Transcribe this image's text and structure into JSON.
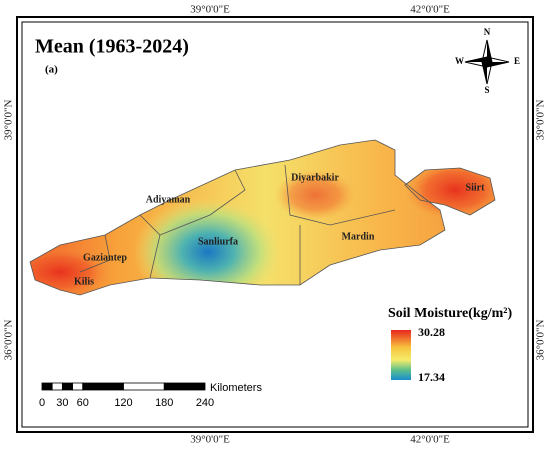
{
  "header": {
    "title": "Mean (1963-2024)",
    "subtitle": "(a)"
  },
  "coordinates": {
    "top": [
      "39°0'0\"E",
      "42°0'0\"E"
    ],
    "bottom": [
      "39°0'0\"E",
      "42°0'0\"E"
    ],
    "left": [
      "39°0'0\"N",
      "36°0'0\"N"
    ],
    "right": [
      "39°0'0\"N",
      "36°0'0\"N"
    ]
  },
  "places": [
    "Diyarbakir",
    "Siirt",
    "Adiyaman",
    "Sanliurfa",
    "Mardin",
    "Gaziantep",
    "Kilis"
  ],
  "compass": [
    "N",
    "S",
    "E",
    "W"
  ],
  "legend": {
    "title": "Soil Moisture(kg/m²)",
    "max": 30.28,
    "min": 17.34
  },
  "scale_bar": {
    "unit": "Kilometers",
    "ticks": [
      0,
      30,
      60,
      120,
      180,
      240
    ]
  }
}
